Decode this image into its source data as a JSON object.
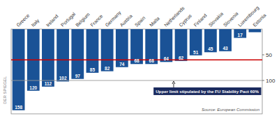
{
  "chart_data": {
    "type": "bar",
    "categories": [
      "Greece",
      "Italy",
      "Ireland",
      "Portugal",
      "Belgium",
      "France",
      "Germany",
      "Austria",
      "Spain",
      "Malta",
      "Netherlands",
      "Cyprus",
      "Finland",
      "Slovakia",
      "Slovenia",
      "Luxembourg",
      "Estonia"
    ],
    "values": [
      158,
      120,
      112,
      102,
      97,
      85,
      82,
      74,
      68,
      68,
      64,
      62,
      51,
      45,
      43,
      17,
      6
    ],
    "value_labels": [
      "158",
      "120",
      "112",
      "102",
      "97",
      "85",
      "82",
      "74",
      "68",
      "68",
      "64",
      "62",
      "51",
      "45",
      "43",
      "17",
      null
    ],
    "data_labels": true,
    "color": "#1a5296",
    "ylim": [
      0,
      165
    ],
    "yticks": [
      50,
      100
    ],
    "grid": false,
    "reference_lines": [
      {
        "value": 60,
        "color": "#cc0000"
      },
      {
        "value": 100,
        "color": "#999999"
      }
    ],
    "annotation": "Upper limit stipulated by the FU Stability Pact  60%",
    "source": "Source: European Commission",
    "credit": "DER SPIEGEL"
  }
}
